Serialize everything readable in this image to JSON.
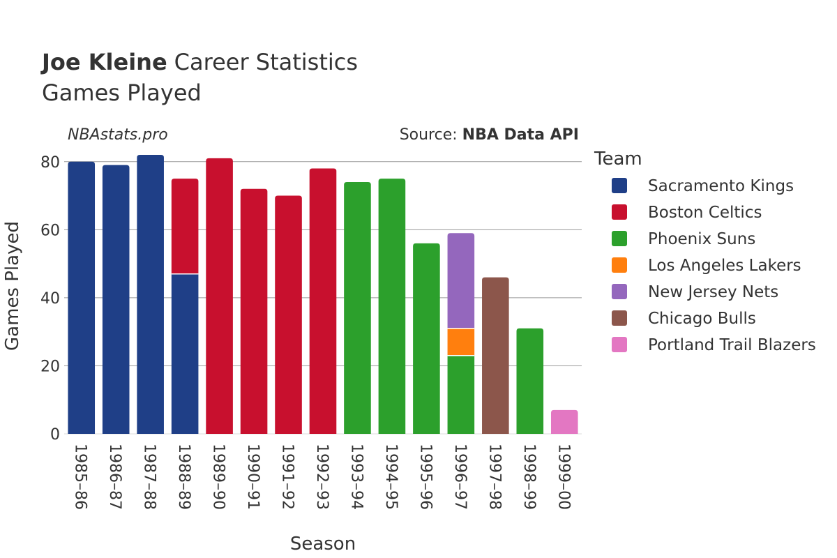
{
  "chart_data": {
    "type": "bar",
    "stacked": true,
    "title": {
      "bold": "Joe Kleine",
      "rest": "Career Statistics",
      "subtitle": "Games Played"
    },
    "watermark": "NBAstats.pro",
    "source": {
      "prefix": "Source: ",
      "bold": "NBA Data API"
    },
    "xlabel": "Season",
    "ylabel": "Games Played",
    "ylim": [
      0,
      82
    ],
    "yticks": [
      0,
      20,
      40,
      60,
      80
    ],
    "grid": true,
    "legend_title": "Team",
    "legend_position": "right",
    "categories": [
      "1985–86",
      "1986–87",
      "1987–88",
      "1988–89",
      "1989–90",
      "1990–91",
      "1991–92",
      "1992–93",
      "1993–94",
      "1994–95",
      "1995–96",
      "1996–97",
      "1997–98",
      "1998–99",
      "1999–00"
    ],
    "series": [
      {
        "name": "Sacramento Kings",
        "color": "#1f3f87",
        "values": [
          80,
          79,
          82,
          47,
          0,
          0,
          0,
          0,
          0,
          0,
          0,
          0,
          0,
          0,
          0
        ]
      },
      {
        "name": "Boston Celtics",
        "color": "#c8102e",
        "values": [
          0,
          0,
          0,
          28,
          81,
          72,
          70,
          78,
          0,
          0,
          0,
          0,
          0,
          0,
          0
        ]
      },
      {
        "name": "Phoenix Suns",
        "color": "#2ca02c",
        "values": [
          0,
          0,
          0,
          0,
          0,
          0,
          0,
          0,
          74,
          75,
          56,
          23,
          0,
          31,
          0
        ]
      },
      {
        "name": "Los Angeles Lakers",
        "color": "#ff7f0e",
        "values": [
          0,
          0,
          0,
          0,
          0,
          0,
          0,
          0,
          0,
          0,
          0,
          8,
          0,
          0,
          0
        ]
      },
      {
        "name": "New Jersey Nets",
        "color": "#9467bd",
        "values": [
          0,
          0,
          0,
          0,
          0,
          0,
          0,
          0,
          0,
          0,
          0,
          28,
          0,
          0,
          0
        ]
      },
      {
        "name": "Chicago Bulls",
        "color": "#8c564b",
        "values": [
          0,
          0,
          0,
          0,
          0,
          0,
          0,
          0,
          0,
          0,
          0,
          0,
          46,
          0,
          0
        ]
      },
      {
        "name": "Portland Trail Blazers",
        "color": "#e377c2",
        "values": [
          0,
          0,
          0,
          0,
          0,
          0,
          0,
          0,
          0,
          0,
          0,
          0,
          0,
          0,
          7
        ]
      }
    ]
  }
}
